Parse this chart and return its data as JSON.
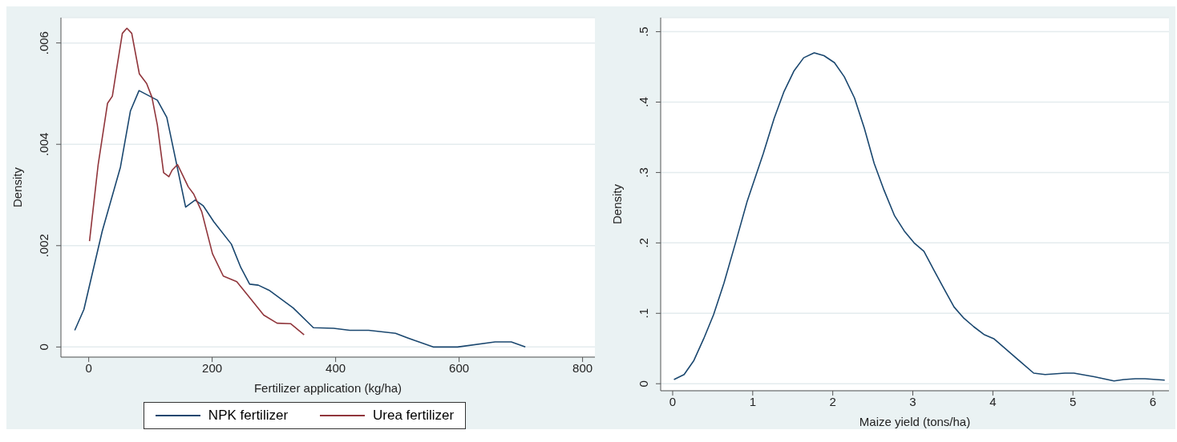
{
  "chart_data": [
    {
      "type": "line",
      "xlabel": "Fertilizer application (kg/ha)",
      "ylabel": "Density",
      "xlim": [
        -45,
        820
      ],
      "ylim": [
        -0.0002,
        0.0065
      ],
      "xticks": [
        0,
        200,
        400,
        600,
        800
      ],
      "yticks": [
        {
          "value": 0,
          "label": "0"
        },
        {
          "value": 0.002,
          "label": ".002"
        },
        {
          "value": 0.004,
          "label": ".004"
        },
        {
          "value": 0.006,
          "label": ".006"
        }
      ],
      "grid": "y",
      "legend": "bottom",
      "series": [
        {
          "name": "NPK fertilizer",
          "color": "#1a476f",
          "x": [
            -22.6,
            -7.8,
            21.8,
            51.4,
            67.6,
            81.5,
            111.2,
            126.5,
            157,
            172.3,
            185.3,
            202.7,
            231.1,
            246.3,
            260.7,
            274.7,
            292.1,
            331.3,
            364,
            396.7,
            422.9,
            453.5,
            497,
            527.5,
            558,
            597.4,
            658.3,
            684.5,
            707.3
          ],
          "values": [
            0.00033,
            0.00074,
            0.00228,
            0.00355,
            0.00466,
            0.00506,
            0.00487,
            0.00453,
            0.00276,
            0.0029,
            0.00279,
            0.00247,
            0.00203,
            0.00157,
            0.00124,
            0.00122,
            0.00112,
            0.00077,
            0.00038,
            0.00037,
            0.00033,
            0.00033,
            0.00027,
            0.00013,
            0,
            0,
            0.0001,
            0.0001,
            0
          ]
        },
        {
          "name": "Urea fertilizer",
          "color": "#90353b",
          "x": [
            1.3,
            15.3,
            30.5,
            38.3,
            45.8,
            54.5,
            61.9,
            69.7,
            82,
            93.8,
            102.4,
            111.2,
            121.3,
            129.9,
            135.1,
            143.9,
            152.6,
            161.3,
            170,
            183.1,
            200.5,
            218,
            239.8,
            261.6,
            283.5,
            305.2,
            327,
            348.9
          ],
          "values": [
            0.00209,
            0.0036,
            0.00481,
            0.00495,
            0.00553,
            0.00619,
            0.00629,
            0.00619,
            0.00539,
            0.0052,
            0.00493,
            0.00438,
            0.00344,
            0.00336,
            0.00349,
            0.0036,
            0.00338,
            0.00316,
            0.00302,
            0.00267,
            0.00184,
            0.0014,
            0.00129,
            0.00096,
            0.00063,
            0.00047,
            0.00046,
            0.00024
          ]
        }
      ]
    },
    {
      "type": "line",
      "xlabel": "Maize yield (tons/ha)",
      "ylabel": "Density",
      "xlim": [
        -0.15,
        6.2
      ],
      "ylim": [
        -0.01,
        0.52
      ],
      "xticks": [
        0,
        1,
        2,
        3,
        4,
        5,
        6
      ],
      "yticks": [
        {
          "value": 0,
          "label": "0"
        },
        {
          "value": 0.1,
          "label": ".1"
        },
        {
          "value": 0.2,
          "label": ".2"
        },
        {
          "value": 0.3,
          "label": ".3"
        },
        {
          "value": 0.4,
          "label": ".4"
        },
        {
          "value": 0.5,
          "label": ".5"
        }
      ],
      "grid": "y",
      "series": [
        {
          "color": "#1a476f",
          "x": [
            0.016,
            0.143,
            0.265,
            0.388,
            0.511,
            0.641,
            0.785,
            0.928,
            1.132,
            1.268,
            1.391,
            1.514,
            1.637,
            1.767,
            1.89,
            2.021,
            2.144,
            2.271,
            2.394,
            2.517,
            2.64,
            2.77,
            2.893,
            3.016,
            3.139,
            3.261,
            3.384,
            3.515,
            3.638,
            3.761,
            3.888,
            4.011,
            4.265,
            4.51,
            4.653,
            4.899,
            5.013,
            5.267,
            5.513,
            5.636,
            5.779,
            5.901,
            6.147
          ],
          "values": [
            0.006,
            0.013,
            0.033,
            0.064,
            0.098,
            0.143,
            0.2,
            0.258,
            0.327,
            0.377,
            0.415,
            0.444,
            0.463,
            0.47,
            0.466,
            0.456,
            0.436,
            0.406,
            0.363,
            0.313,
            0.275,
            0.239,
            0.217,
            0.2,
            0.188,
            0.162,
            0.136,
            0.109,
            0.093,
            0.081,
            0.07,
            0.064,
            0.039,
            0.015,
            0.013,
            0.015,
            0.015,
            0.01,
            0.004,
            0.006,
            0.007,
            0.007,
            0.005
          ]
        }
      ]
    }
  ]
}
